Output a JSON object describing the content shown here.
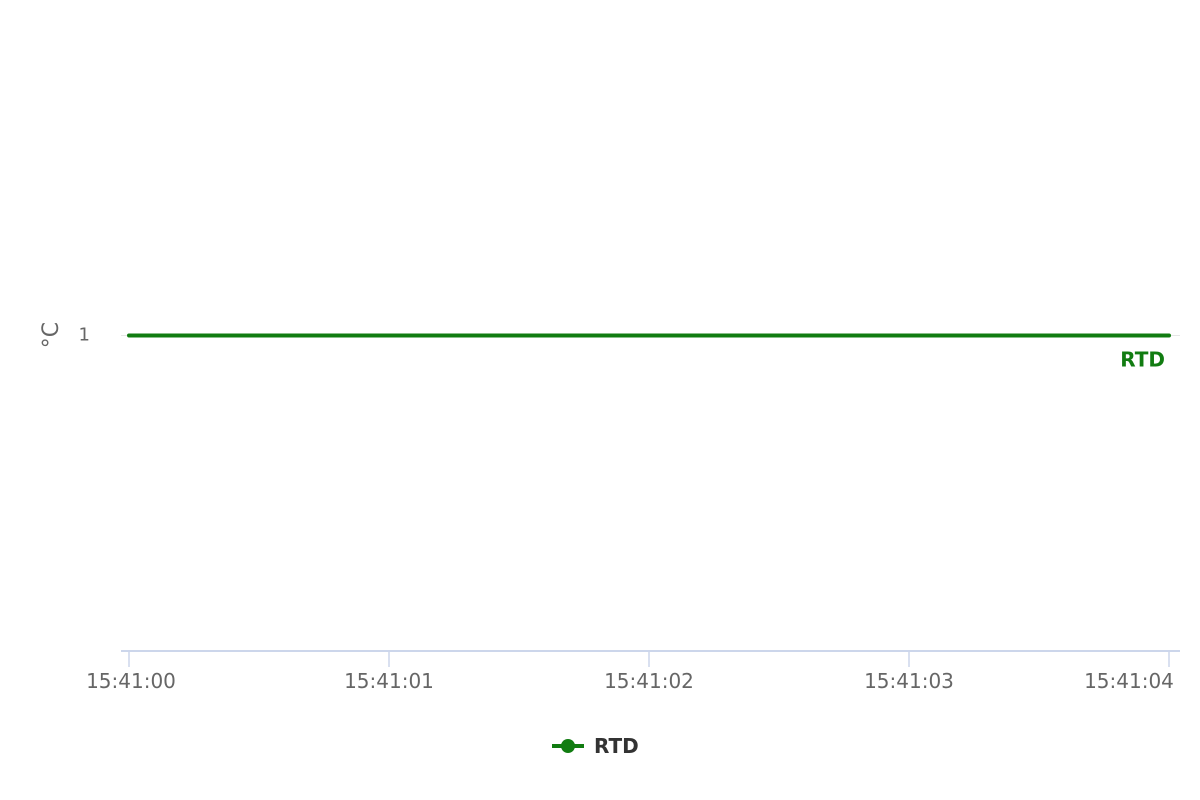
{
  "chart_data": {
    "type": "line",
    "title": "",
    "xlabel": "",
    "ylabel": "°C",
    "x": [
      "15:41:00",
      "15:41:01",
      "15:41:02",
      "15:41:03",
      "15:41:04"
    ],
    "xlim": [
      "15:41:00",
      "15:41:04"
    ],
    "ylim": [
      -0.2,
      2.2
    ],
    "y_ticks": [
      1
    ],
    "y_tick_labels": [
      "1"
    ],
    "grid": true,
    "legend_position": "bottom-center",
    "series": [
      {
        "name": "RTD",
        "values": [
          1,
          1,
          1,
          1,
          1
        ],
        "color": "#117c11"
      }
    ],
    "series_end_label": "RTD"
  },
  "colors": {
    "axis_line": "#ccd6eb",
    "grid_line": "#e6e6e6"
  }
}
